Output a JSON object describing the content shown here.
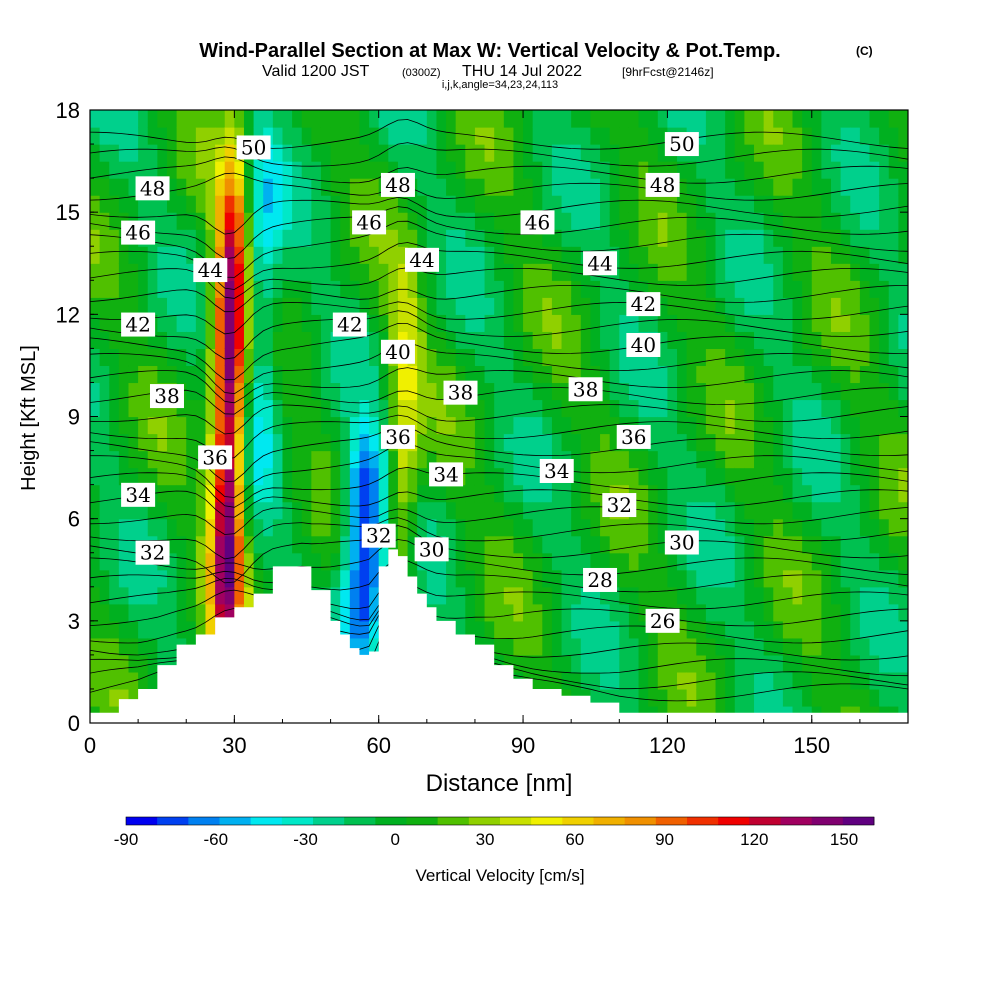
{
  "chart_data": {
    "type": "heatmap",
    "title": "Wind-Parallel Section at Max W: Vertical Velocity & Pot.Temp.",
    "title_mark": "(C)",
    "subtitle_valid": "Valid 1200 JST",
    "subtitle_utc": "(0300Z)",
    "subtitle_date": "THU 14 Jul 2022",
    "subtitle_fcst": "[9hrFcst@2146z]",
    "subtitle_params": "i,j,k,angle=34,23,24,113",
    "xlabel": "Distance [nm]",
    "ylabel": "Height [Kft MSL]",
    "xlim": [
      0,
      170
    ],
    "ylim": [
      0,
      18
    ],
    "x_ticks": [
      "0",
      "30",
      "60",
      "90",
      "120",
      "150"
    ],
    "y_ticks": [
      "0",
      "3",
      "6",
      "9",
      "12",
      "15",
      "18"
    ],
    "colorbar": {
      "label": "Vertical Velocity [cm/s]",
      "tick_labels": [
        "-90",
        "-60",
        "-30",
        "0",
        "30",
        "60",
        "90",
        "120",
        "150"
      ],
      "range": [
        -90,
        160
      ],
      "colors": [
        "#0000f0",
        "#0040f0",
        "#0080f0",
        "#00b0f0",
        "#00e8f0",
        "#00e8c8",
        "#00d08c",
        "#00c050",
        "#00b020",
        "#10b010",
        "#50c000",
        "#90d000",
        "#c8e000",
        "#f0f000",
        "#f0d000",
        "#f0b000",
        "#f09000",
        "#f06000",
        "#f03000",
        "#f00000",
        "#c00030",
        "#a00060",
        "#800070",
        "#600080"
      ]
    },
    "terrain_height_kft": [
      [
        0,
        0.3
      ],
      [
        6,
        0.7
      ],
      [
        10,
        1.0
      ],
      [
        14,
        1.7
      ],
      [
        18,
        2.3
      ],
      [
        22,
        2.6
      ],
      [
        26,
        3.1
      ],
      [
        30,
        3.4
      ],
      [
        34,
        3.8
      ],
      [
        38,
        4.6
      ],
      [
        44,
        4.6
      ],
      [
        46,
        3.9
      ],
      [
        50,
        3.0
      ],
      [
        52,
        2.6
      ],
      [
        54,
        2.2
      ],
      [
        56,
        2.0
      ],
      [
        58,
        2.1
      ],
      [
        60,
        4.6
      ],
      [
        62,
        5.1
      ],
      [
        64,
        4.9
      ],
      [
        66,
        4.3
      ],
      [
        68,
        3.8
      ],
      [
        70,
        3.4
      ],
      [
        72,
        3.0
      ],
      [
        76,
        2.6
      ],
      [
        80,
        2.3
      ],
      [
        84,
        1.7
      ],
      [
        88,
        1.3
      ],
      [
        92,
        1.0
      ],
      [
        98,
        0.8
      ],
      [
        104,
        0.6
      ],
      [
        110,
        0.3
      ],
      [
        170,
        0.3
      ]
    ],
    "vertical_velocity_features": [
      {
        "name": "main updraft core",
        "x_nm": 29,
        "z_kft": [
          3,
          15
        ],
        "peak_cm_s": 155
      },
      {
        "name": "downdraft lee side",
        "x_nm": 35,
        "z_kft": [
          8,
          16
        ],
        "peak_cm_s": -45
      },
      {
        "name": "secondary updraft",
        "x_nm": 65,
        "z_kft": [
          4,
          12
        ],
        "peak_cm_s": 45
      },
      {
        "name": "valley downdraft",
        "x_nm": 57,
        "z_kft": [
          3,
          7
        ],
        "peak_cm_s": -90
      }
    ],
    "isentrope_labels": [
      {
        "text": "50",
        "x": 34,
        "z": 16.9
      },
      {
        "text": "48",
        "x": 13,
        "z": 15.7
      },
      {
        "text": "46",
        "x": 10,
        "z": 14.4
      },
      {
        "text": "44",
        "x": 25,
        "z": 13.3
      },
      {
        "text": "42",
        "x": 10,
        "z": 11.7
      },
      {
        "text": "38",
        "x": 16,
        "z": 9.6
      },
      {
        "text": "36",
        "x": 26,
        "z": 7.8
      },
      {
        "text": "34",
        "x": 10,
        "z": 6.7
      },
      {
        "text": "32",
        "x": 13,
        "z": 5.0
      },
      {
        "text": "48",
        "x": 64,
        "z": 15.8
      },
      {
        "text": "46",
        "x": 58,
        "z": 14.7
      },
      {
        "text": "44",
        "x": 69,
        "z": 13.6
      },
      {
        "text": "42",
        "x": 54,
        "z": 11.7
      },
      {
        "text": "40",
        "x": 64,
        "z": 10.9
      },
      {
        "text": "36",
        "x": 64,
        "z": 8.4
      },
      {
        "text": "34",
        "x": 74,
        "z": 7.3
      },
      {
        "text": "32",
        "x": 60,
        "z": 5.5
      },
      {
        "text": "30",
        "x": 71,
        "z": 5.1
      },
      {
        "text": "38",
        "x": 77,
        "z": 9.7
      },
      {
        "text": "50",
        "x": 123,
        "z": 17.0
      },
      {
        "text": "48",
        "x": 119,
        "z": 15.8
      },
      {
        "text": "46",
        "x": 93,
        "z": 14.7
      },
      {
        "text": "44",
        "x": 106,
        "z": 13.5
      },
      {
        "text": "42",
        "x": 115,
        "z": 12.3
      },
      {
        "text": "40",
        "x": 115,
        "z": 11.1
      },
      {
        "text": "38",
        "x": 103,
        "z": 9.8
      },
      {
        "text": "36",
        "x": 113,
        "z": 8.4
      },
      {
        "text": "34",
        "x": 97,
        "z": 7.4
      },
      {
        "text": "32",
        "x": 110,
        "z": 6.4
      },
      {
        "text": "30",
        "x": 123,
        "z": 5.3
      },
      {
        "text": "28",
        "x": 106,
        "z": 4.2
      },
      {
        "text": "26",
        "x": 119,
        "z": 3.0
      }
    ]
  }
}
